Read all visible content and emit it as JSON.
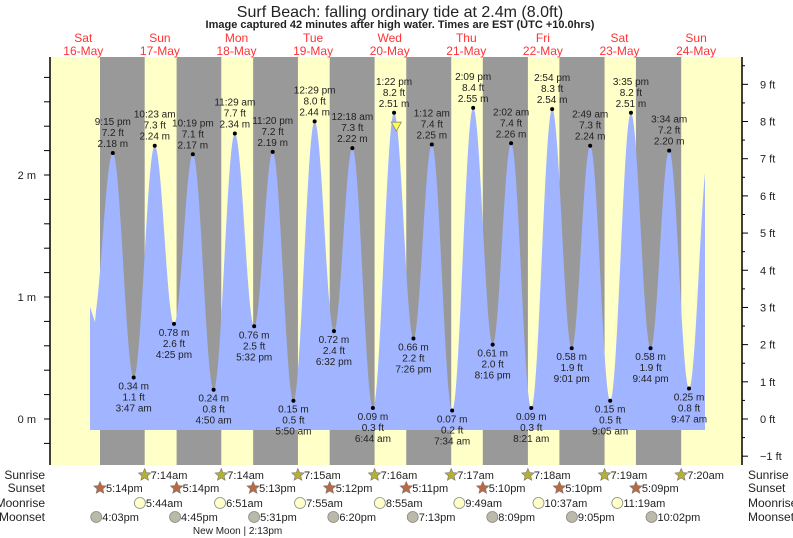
{
  "chart_data": {
    "type": "area",
    "title": "Surf Beach: falling  ordinary tide at 2.4m (8.0ft)",
    "subtitle": "Image captured 42 minutes after high water. Times are EST (UTC +10.0hrs)",
    "days": [
      {
        "dow": "Sat",
        "date": "16-May"
      },
      {
        "dow": "Sun",
        "date": "17-May"
      },
      {
        "dow": "Mon",
        "date": "18-May"
      },
      {
        "dow": "Tue",
        "date": "19-May"
      },
      {
        "dow": "Wed",
        "date": "20-May"
      },
      {
        "dow": "Thu",
        "date": "21-May"
      },
      {
        "dow": "Fri",
        "date": "22-May"
      },
      {
        "dow": "Sat",
        "date": "23-May"
      },
      {
        "dow": "Sun",
        "date": "24-May"
      }
    ],
    "y_left": {
      "unit": "m",
      "ticks": [
        "0 m",
        "1 m",
        "2 m"
      ],
      "range": [
        -0.12,
        3.0
      ]
    },
    "y_right": {
      "unit": "ft",
      "ticks": [
        "−1 ft",
        "0 ft",
        "1 ft",
        "2 ft",
        "3 ft",
        "4 ft",
        "5 ft",
        "6 ft",
        "7 ft",
        "8 ft",
        "9 ft"
      ]
    },
    "extremes": [
      {
        "day": 16,
        "t": "21:15",
        "type": "high",
        "time": "9:15 pm",
        "ft": "7.2 ft",
        "m": "2.18 m",
        "v": 2.18
      },
      {
        "day": 17,
        "t": "03:47",
        "type": "low",
        "time": "3:47 am",
        "ft": "1.1 ft",
        "m": "0.34 m",
        "v": 0.34
      },
      {
        "day": 17,
        "t": "10:23",
        "type": "high",
        "time": "10:23 am",
        "ft": "7.3 ft",
        "m": "2.24 m",
        "v": 2.24
      },
      {
        "day": 17,
        "t": "16:25",
        "type": "low",
        "time": "4:25 pm",
        "ft": "2.6 ft",
        "m": "0.78 m",
        "v": 0.78
      },
      {
        "day": 17,
        "t": "22:19",
        "type": "high",
        "time": "10:19 pm",
        "ft": "7.1 ft",
        "m": "2.17 m",
        "v": 2.17
      },
      {
        "day": 18,
        "t": "04:50",
        "type": "low",
        "time": "4:50 am",
        "ft": "0.8 ft",
        "m": "0.24 m",
        "v": 0.24
      },
      {
        "day": 18,
        "t": "11:29",
        "type": "high",
        "time": "11:29 am",
        "ft": "7.7 ft",
        "m": "2.34 m",
        "v": 2.34
      },
      {
        "day": 18,
        "t": "17:32",
        "type": "low",
        "time": "5:32 pm",
        "ft": "2.5 ft",
        "m": "0.76 m",
        "v": 0.76
      },
      {
        "day": 18,
        "t": "23:20",
        "type": "high",
        "time": "11:20 pm",
        "ft": "7.2 ft",
        "m": "2.19 m",
        "v": 2.19
      },
      {
        "day": 19,
        "t": "05:50",
        "type": "low",
        "time": "5:50 am",
        "ft": "0.5 ft",
        "m": "0.15 m",
        "v": 0.15
      },
      {
        "day": 19,
        "t": "12:29",
        "type": "high",
        "time": "12:29 pm",
        "ft": "8.0 ft",
        "m": "2.44 m",
        "v": 2.44
      },
      {
        "day": 19,
        "t": "18:32",
        "type": "low",
        "time": "6:32 pm",
        "ft": "2.4 ft",
        "m": "0.72 m",
        "v": 0.72
      },
      {
        "day": 20,
        "t": "00:18",
        "type": "high",
        "time": "12:18 am",
        "ft": "7.3 ft",
        "m": "2.22 m",
        "v": 2.22
      },
      {
        "day": 20,
        "t": "06:44",
        "type": "low",
        "time": "6:44 am",
        "ft": "0.3 ft",
        "m": "0.09 m",
        "v": 0.09
      },
      {
        "day": 20,
        "t": "13:22",
        "type": "high",
        "time": "1:22 pm",
        "ft": "8.2 ft",
        "m": "2.51 m",
        "v": 2.51
      },
      {
        "day": 20,
        "t": "19:26",
        "type": "low",
        "time": "7:26 pm",
        "ft": "2.2 ft",
        "m": "0.66 m",
        "v": 0.66
      },
      {
        "day": 21,
        "t": "01:12",
        "type": "high",
        "time": "1:12 am",
        "ft": "7.4 ft",
        "m": "2.25 m",
        "v": 2.25
      },
      {
        "day": 21,
        "t": "07:34",
        "type": "low",
        "time": "7:34 am",
        "ft": "0.2 ft",
        "m": "0.07 m",
        "v": 0.07
      },
      {
        "day": 21,
        "t": "14:09",
        "type": "high",
        "time": "2:09 pm",
        "ft": "8.4 ft",
        "m": "2.55 m",
        "v": 2.55
      },
      {
        "day": 21,
        "t": "20:16",
        "type": "low",
        "time": "8:16 pm",
        "ft": "2.0 ft",
        "m": "0.61 m",
        "v": 0.61
      },
      {
        "day": 22,
        "t": "02:02",
        "type": "high",
        "time": "2:02 am",
        "ft": "7.4 ft",
        "m": "2.26 m",
        "v": 2.26
      },
      {
        "day": 22,
        "t": "08:21",
        "type": "low",
        "time": "8:21 am",
        "ft": "0.3 ft",
        "m": "0.09 m",
        "v": 0.09
      },
      {
        "day": 22,
        "t": "14:54",
        "type": "high",
        "time": "2:54 pm",
        "ft": "8.3 ft",
        "m": "2.54 m",
        "v": 2.54
      },
      {
        "day": 22,
        "t": "21:01",
        "type": "low",
        "time": "9:01 pm",
        "ft": "1.9 ft",
        "m": "0.58 m",
        "v": 0.58
      },
      {
        "day": 23,
        "t": "02:49",
        "type": "high",
        "time": "2:49 am",
        "ft": "7.3 ft",
        "m": "2.24 m",
        "v": 2.24
      },
      {
        "day": 23,
        "t": "09:05",
        "type": "low",
        "time": "9:05 am",
        "ft": "0.5 ft",
        "m": "0.15 m",
        "v": 0.15
      },
      {
        "day": 23,
        "t": "15:35",
        "type": "high",
        "time": "3:35 pm",
        "ft": "8.2 ft",
        "m": "2.51 m",
        "v": 2.51
      },
      {
        "day": 23,
        "t": "21:44",
        "type": "low",
        "time": "9:44 pm",
        "ft": "1.9 ft",
        "m": "0.58 m",
        "v": 0.58
      },
      {
        "day": 24,
        "t": "03:34",
        "type": "high",
        "time": "3:34 am",
        "ft": "7.2 ft",
        "m": "2.20 m",
        "v": 2.2
      },
      {
        "day": 24,
        "t": "09:47",
        "type": "low",
        "time": "9:47 am",
        "ft": "0.8 ft",
        "m": "0.25 m",
        "v": 0.25
      }
    ],
    "current": {
      "day": 20,
      "t": "14:04",
      "v": 2.4
    },
    "grid": false,
    "colors": {
      "day": "#ffffc8",
      "night": "#999999",
      "water": "#a0b4ff",
      "daylabel": "#ff3333",
      "sunrise": "#b5b030",
      "sunset": "#b86a45",
      "moonrise": "#ffffc8",
      "moonset": "#bbbaa8"
    }
  },
  "astro": {
    "row_labels": {
      "sunrise": "Sunrise",
      "sunset": "Sunset",
      "moonrise": "Moonrise",
      "moonset": "Moonset"
    },
    "sunrise": [
      {
        "day": 17,
        "t": "07:14",
        "label": "7:14am"
      },
      {
        "day": 18,
        "t": "07:14",
        "label": "7:14am"
      },
      {
        "day": 19,
        "t": "07:15",
        "label": "7:15am"
      },
      {
        "day": 20,
        "t": "07:16",
        "label": "7:16am"
      },
      {
        "day": 21,
        "t": "07:17",
        "label": "7:17am"
      },
      {
        "day": 22,
        "t": "07:18",
        "label": "7:18am"
      },
      {
        "day": 23,
        "t": "07:19",
        "label": "7:19am"
      },
      {
        "day": 24,
        "t": "07:20",
        "label": "7:20am"
      }
    ],
    "sunset": [
      {
        "day": 16,
        "t": "17:14",
        "label": "5:14pm"
      },
      {
        "day": 17,
        "t": "17:14",
        "label": "5:14pm"
      },
      {
        "day": 18,
        "t": "17:13",
        "label": "5:13pm"
      },
      {
        "day": 19,
        "t": "17:12",
        "label": "5:12pm"
      },
      {
        "day": 20,
        "t": "17:11",
        "label": "5:11pm"
      },
      {
        "day": 21,
        "t": "17:10",
        "label": "5:10pm"
      },
      {
        "day": 22,
        "t": "17:10",
        "label": "5:10pm"
      },
      {
        "day": 23,
        "t": "17:09",
        "label": "5:09pm"
      }
    ],
    "moonrise": [
      {
        "day": 17,
        "t": "05:44",
        "label": "5:44am"
      },
      {
        "day": 18,
        "t": "06:51",
        "label": "6:51am"
      },
      {
        "day": 19,
        "t": "07:55",
        "label": "7:55am"
      },
      {
        "day": 20,
        "t": "08:55",
        "label": "8:55am"
      },
      {
        "day": 21,
        "t": "09:49",
        "label": "9:49am"
      },
      {
        "day": 22,
        "t": "10:37",
        "label": "10:37am"
      },
      {
        "day": 23,
        "t": "11:19",
        "label": "11:19am"
      }
    ],
    "moonset": [
      {
        "day": 16,
        "t": "16:03",
        "label": "4:03pm"
      },
      {
        "day": 17,
        "t": "16:45",
        "label": "4:45pm"
      },
      {
        "day": 18,
        "t": "17:31",
        "label": "5:31pm"
      },
      {
        "day": 19,
        "t": "18:20",
        "label": "6:20pm"
      },
      {
        "day": 20,
        "t": "19:13",
        "label": "7:13pm"
      },
      {
        "day": 21,
        "t": "20:09",
        "label": "8:09pm"
      },
      {
        "day": 22,
        "t": "21:05",
        "label": "9:05pm"
      },
      {
        "day": 23,
        "t": "22:02",
        "label": "10:02pm"
      }
    ],
    "moon_phase": {
      "day": 18,
      "t": "14:13",
      "label": "New Moon | 2:13pm"
    }
  }
}
